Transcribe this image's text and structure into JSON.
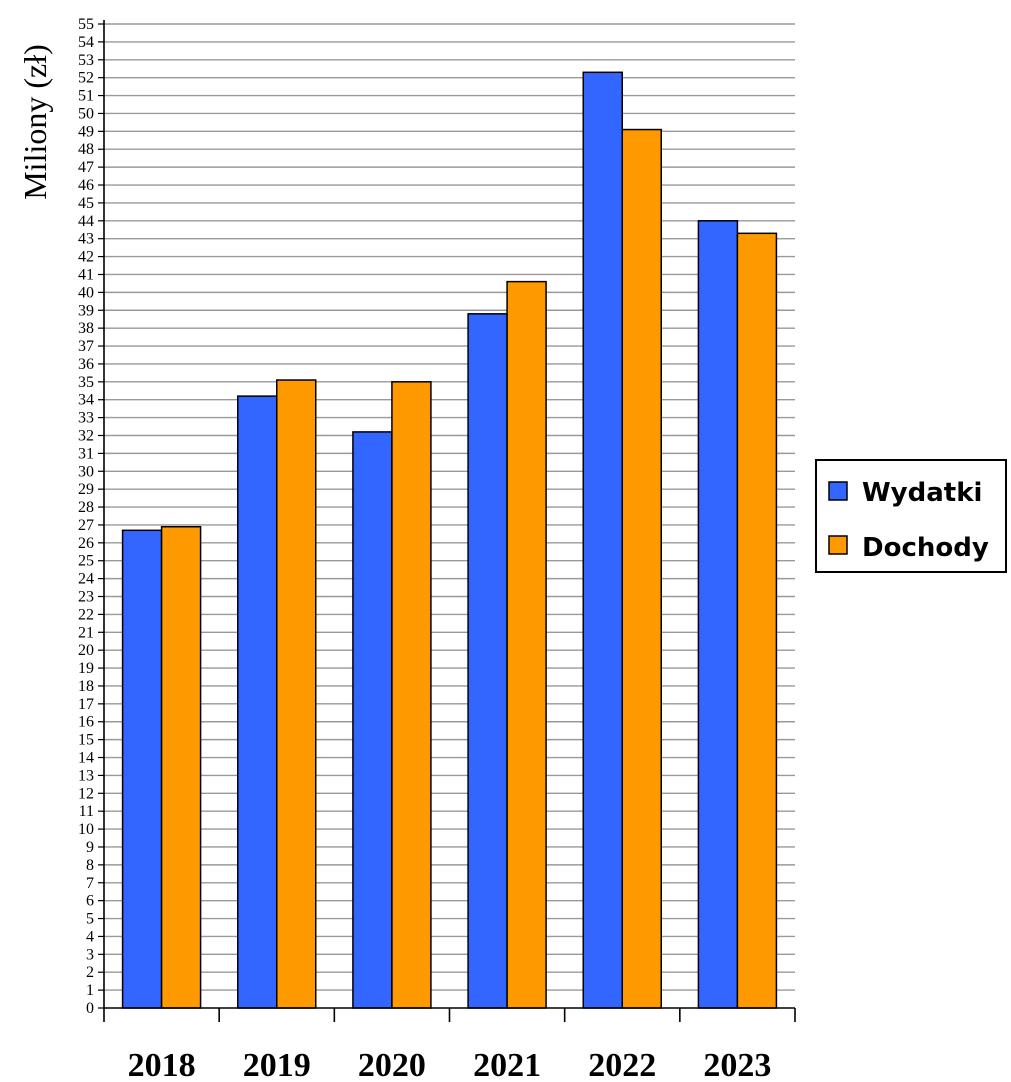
{
  "chart_data": {
    "type": "bar",
    "title": "",
    "xlabel": "",
    "ylabel": "Miliony (zł)",
    "categories": [
      "2018",
      "2019",
      "2020",
      "2021",
      "2022",
      "2023"
    ],
    "series": [
      {
        "name": "Wydatki",
        "color": "#3366ff",
        "values": [
          26.7,
          34.2,
          32.2,
          38.8,
          52.3,
          44.0
        ]
      },
      {
        "name": "Dochody",
        "color": "#ff9900",
        "values": [
          26.9,
          35.1,
          35.0,
          40.6,
          49.1,
          43.3
        ]
      }
    ],
    "ylim": [
      0,
      55
    ],
    "ytick_step": 1,
    "grid": true,
    "legend_position": "right"
  }
}
